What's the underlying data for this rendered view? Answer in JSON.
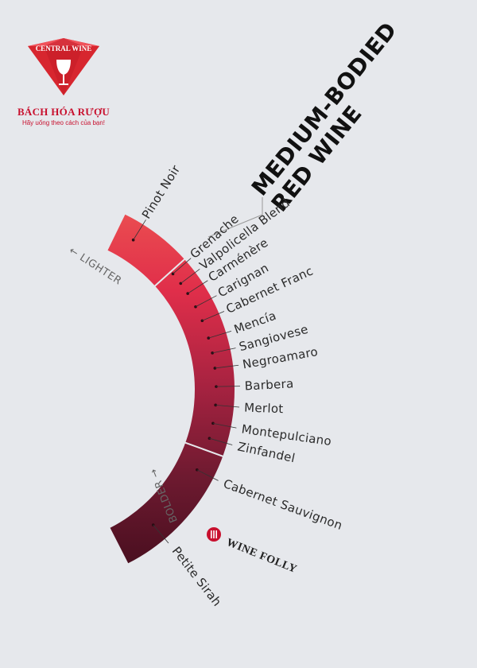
{
  "logo": {
    "top_text": "CENTRAL WINE",
    "name": "BÁCH HÓA RƯỢU",
    "tagline": "Hãy uống theo cách của bạn!"
  },
  "title": {
    "line1": "MEDIUM-BODIED",
    "line2": "RED WINE"
  },
  "directions": {
    "lighter": "← LIGHTER",
    "bolder": "BOLDER →"
  },
  "brand": {
    "name": "WINE FOLLY",
    "icon": "wine-folly-logo-icon"
  },
  "colors": {
    "light": "#ea4c50",
    "medium": "#e02e4a",
    "dark": "#5c1426",
    "darkest": "#4a0f20"
  },
  "wines": [
    {
      "name": "Pinot Noir"
    },
    {
      "name": "Grenache"
    },
    {
      "name": "Valpolicella Blend"
    },
    {
      "name": "Carménère"
    },
    {
      "name": "Carignan"
    },
    {
      "name": "Cabernet Franc"
    },
    {
      "name": "Mencía"
    },
    {
      "name": "Sangiovese"
    },
    {
      "name": "Negroamaro"
    },
    {
      "name": "Barbera"
    },
    {
      "name": "Merlot"
    },
    {
      "name": "Montepulciano"
    },
    {
      "name": "Zinfandel"
    },
    {
      "name": "Cabernet Sauvignon"
    },
    {
      "name": "Petite Sirah"
    }
  ]
}
